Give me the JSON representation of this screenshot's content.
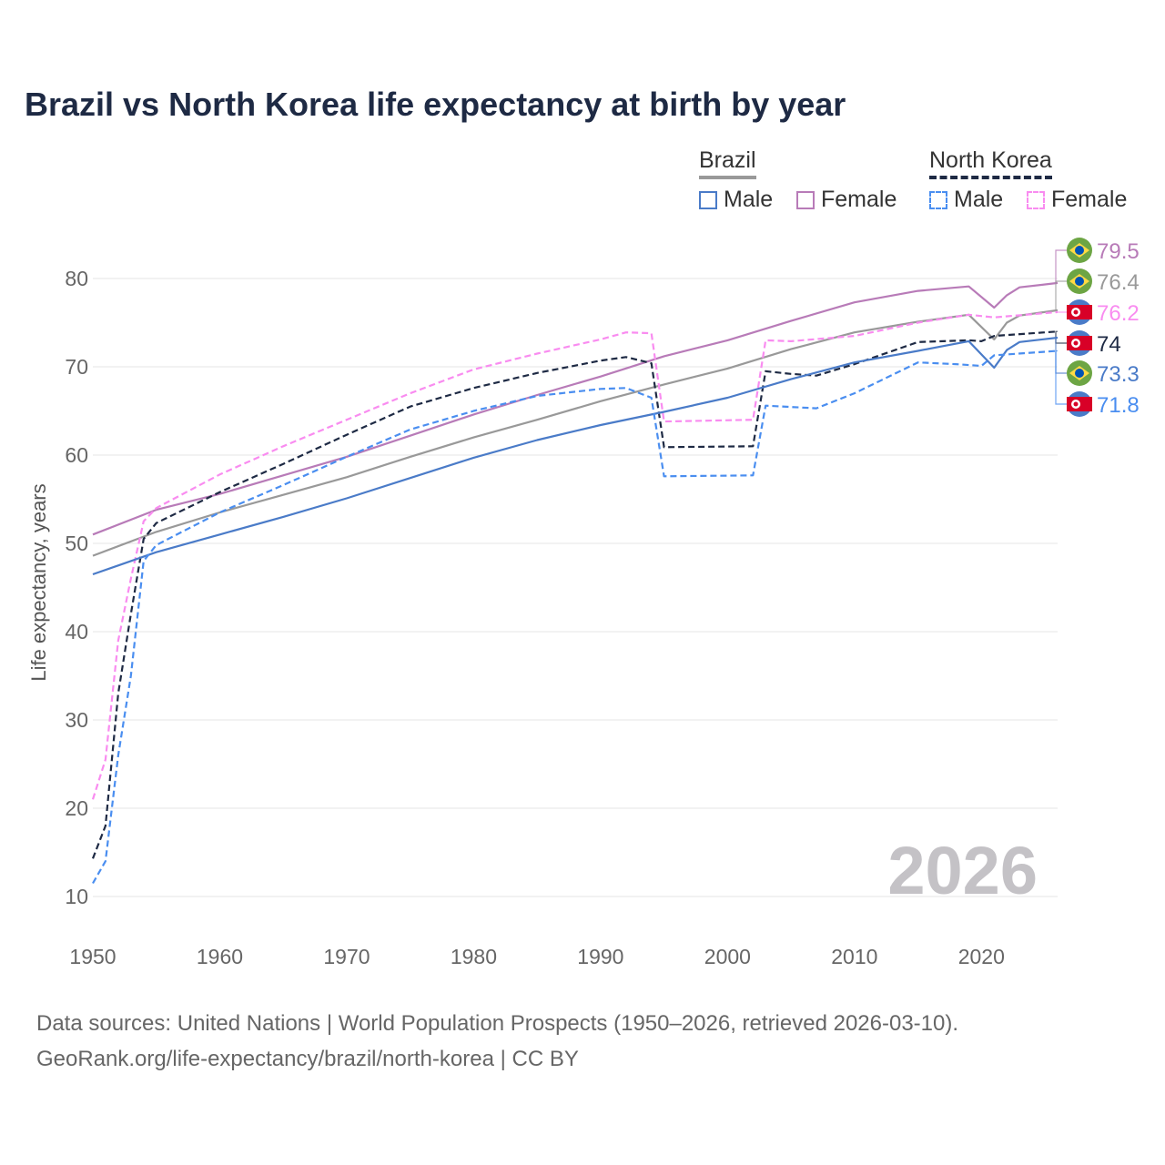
{
  "title": "Brazil vs North Korea life expectancy at birth by year",
  "legend": {
    "brazil_label": "Brazil",
    "north_korea_label": "North Korea",
    "male_label": "Male",
    "female_label": "Female"
  },
  "year_watermark": "2026",
  "footer": {
    "line1": "Data sources: United Nations | World Population Prospects (1950–2026, retrieved 2026-03-10).",
    "line2": "GeoRank.org/life-expectancy/brazil/north-korea | CC BY"
  },
  "chart_data": {
    "type": "line",
    "title": "Brazil vs North Korea life expectancy at birth by year",
    "xlabel": "",
    "ylabel": "Life expectancy, years",
    "xlim": [
      1950,
      2026
    ],
    "ylim": [
      10,
      85
    ],
    "xticks": [
      1950,
      1960,
      1970,
      1980,
      1990,
      2000,
      2010,
      2020
    ],
    "yticks": [
      10,
      20,
      30,
      40,
      50,
      60,
      70,
      80
    ],
    "grid": true,
    "legend_position": "top-right",
    "series": [
      {
        "name": "Brazil Female",
        "country": "Brazil",
        "color": "#b87bb8",
        "dashed": false,
        "end_label": "79.5",
        "points": [
          [
            1950,
            51
          ],
          [
            1955,
            53.8
          ],
          [
            1960,
            55.6
          ],
          [
            1965,
            57.7
          ],
          [
            1970,
            59.8
          ],
          [
            1975,
            62.2
          ],
          [
            1980,
            64.6
          ],
          [
            1985,
            66.8
          ],
          [
            1990,
            68.9
          ],
          [
            1995,
            71.2
          ],
          [
            2000,
            73.0
          ],
          [
            2005,
            75.2
          ],
          [
            2010,
            77.3
          ],
          [
            2015,
            78.6
          ],
          [
            2019,
            79.1
          ],
          [
            2021,
            76.7
          ],
          [
            2022,
            78.1
          ],
          [
            2023,
            79.0
          ],
          [
            2026,
            79.5
          ]
        ]
      },
      {
        "name": "Brazil",
        "country": "Brazil",
        "color": "#999999",
        "dashed": false,
        "end_label": "76.4",
        "points": [
          [
            1950,
            48.6
          ],
          [
            1955,
            51.3
          ],
          [
            1960,
            53.5
          ],
          [
            1965,
            55.5
          ],
          [
            1970,
            57.5
          ],
          [
            1975,
            59.8
          ],
          [
            1980,
            62
          ],
          [
            1985,
            64
          ],
          [
            1990,
            66.1
          ],
          [
            1995,
            68
          ],
          [
            2000,
            69.8
          ],
          [
            2005,
            72
          ],
          [
            2010,
            73.9
          ],
          [
            2015,
            75.1
          ],
          [
            2019,
            75.9
          ],
          [
            2021,
            73.1
          ],
          [
            2022,
            75
          ],
          [
            2023,
            75.8
          ],
          [
            2026,
            76.4
          ]
        ]
      },
      {
        "name": "North Korea Female",
        "country": "North Korea",
        "color": "#f98cf0",
        "dashed": true,
        "end_label": "76.2",
        "points": [
          [
            1950,
            21
          ],
          [
            1951,
            25.5
          ],
          [
            1952,
            39
          ],
          [
            1953,
            46
          ],
          [
            1954,
            52.5
          ],
          [
            1955,
            54
          ],
          [
            1960,
            57.8
          ],
          [
            1965,
            61
          ],
          [
            1970,
            64
          ],
          [
            1975,
            67
          ],
          [
            1980,
            69.7
          ],
          [
            1985,
            71.5
          ],
          [
            1990,
            73.1
          ],
          [
            1992,
            73.9
          ],
          [
            1994,
            73.8
          ],
          [
            1995,
            63.8
          ],
          [
            2002,
            64
          ],
          [
            2003,
            73
          ],
          [
            2005,
            72.9
          ],
          [
            2010,
            73.5
          ],
          [
            2015,
            75
          ],
          [
            2019,
            75.9
          ],
          [
            2021,
            75.6
          ],
          [
            2026,
            76.2
          ]
        ]
      },
      {
        "name": "North Korea",
        "country": "North Korea",
        "color": "#1e2a44",
        "dashed": true,
        "end_label": "74",
        "points": [
          [
            1950,
            14.3
          ],
          [
            1951,
            18
          ],
          [
            1952,
            33
          ],
          [
            1953,
            42
          ],
          [
            1954,
            50.5
          ],
          [
            1955,
            52.3
          ],
          [
            1960,
            55.8
          ],
          [
            1965,
            59
          ],
          [
            1970,
            62.3
          ],
          [
            1975,
            65.5
          ],
          [
            1980,
            67.6
          ],
          [
            1985,
            69.3
          ],
          [
            1990,
            70.7
          ],
          [
            1992,
            71.1
          ],
          [
            1994,
            70.4
          ],
          [
            1995,
            60.9
          ],
          [
            2002,
            61
          ],
          [
            2003,
            69.5
          ],
          [
            2005,
            69.2
          ],
          [
            2007,
            69
          ],
          [
            2010,
            70.3
          ],
          [
            2015,
            72.8
          ],
          [
            2019,
            73
          ],
          [
            2020,
            72.9
          ],
          [
            2021,
            73.5
          ],
          [
            2026,
            74
          ]
        ]
      },
      {
        "name": "Brazil Male",
        "country": "Brazil",
        "color": "#4a7bc8",
        "dashed": false,
        "end_label": "73.3",
        "points": [
          [
            1950,
            46.5
          ],
          [
            1955,
            49
          ],
          [
            1960,
            51
          ],
          [
            1965,
            53
          ],
          [
            1970,
            55.1
          ],
          [
            1975,
            57.4
          ],
          [
            1980,
            59.7
          ],
          [
            1985,
            61.7
          ],
          [
            1990,
            63.4
          ],
          [
            1995,
            64.9
          ],
          [
            2000,
            66.5
          ],
          [
            2005,
            68.6
          ],
          [
            2010,
            70.5
          ],
          [
            2015,
            71.8
          ],
          [
            2019,
            72.9
          ],
          [
            2021,
            69.9
          ],
          [
            2022,
            71.9
          ],
          [
            2023,
            72.8
          ],
          [
            2026,
            73.3
          ]
        ]
      },
      {
        "name": "North Korea Male",
        "country": "North Korea",
        "color": "#4a8ef0",
        "dashed": true,
        "end_label": "71.8",
        "points": [
          [
            1950,
            11.5
          ],
          [
            1951,
            14
          ],
          [
            1952,
            26
          ],
          [
            1953,
            35
          ],
          [
            1954,
            48
          ],
          [
            1955,
            49.8
          ],
          [
            1960,
            53.5
          ],
          [
            1965,
            56.6
          ],
          [
            1970,
            59.8
          ],
          [
            1975,
            62.9
          ],
          [
            1980,
            65
          ],
          [
            1985,
            66.7
          ],
          [
            1990,
            67.5
          ],
          [
            1992,
            67.6
          ],
          [
            1994,
            66.5
          ],
          [
            1995,
            57.6
          ],
          [
            2002,
            57.7
          ],
          [
            2003,
            65.6
          ],
          [
            2007,
            65.3
          ],
          [
            2010,
            67
          ],
          [
            2015,
            70.5
          ],
          [
            2018,
            70.3
          ],
          [
            2020,
            70.1
          ],
          [
            2021,
            71.3
          ],
          [
            2026,
            71.8
          ]
        ]
      }
    ]
  }
}
